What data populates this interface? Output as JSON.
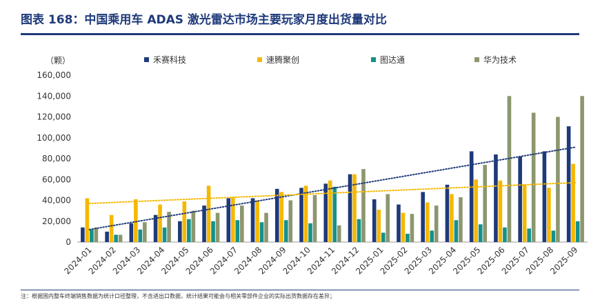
{
  "page": {
    "title": "图表 168：中国乘用车 ADAS 激光雷达市场主要玩家月度出货量对比",
    "note": "注：根据国内整车终端销售数据为统计口径整理，不含进出口数据，统计结果可能会与相关零部件企业的实际出货数据存在差异；"
  },
  "colors": {
    "title": "#1f3a7a",
    "hesai": "#1f3a7a",
    "robosense": "#f5b800",
    "seyond": "#14918a",
    "huawei": "#8c9770",
    "axis": "#999999",
    "text": "#333333"
  },
  "chart_data": {
    "type": "bar",
    "unit_label": "（颗）",
    "categories": [
      "2024-01",
      "2024-02",
      "2024-03",
      "2024-04",
      "2024-05",
      "2024-06",
      "2024-07",
      "2024-08",
      "2024-09",
      "2024-10",
      "2024-11",
      "2024-12",
      "2025-01",
      "2025-02",
      "2025-03",
      "2025-04",
      "2025-05",
      "2025-06",
      "2025-07",
      "2025-08",
      "2025-09"
    ],
    "ylim": [
      0,
      160000
    ],
    "yticks": [
      0,
      20000,
      40000,
      60000,
      80000,
      100000,
      120000,
      140000,
      160000
    ],
    "ytick_labels": [
      "0",
      "20,000",
      "40,000",
      "60,000",
      "80,000",
      "100,000",
      "120,000",
      "140,000",
      "160,000"
    ],
    "legend_position": "top",
    "series": [
      {
        "name": "禾赛科技",
        "color_key": "hesai",
        "values": [
          14000,
          10000,
          18000,
          26000,
          20000,
          35000,
          42000,
          42000,
          51000,
          52000,
          56000,
          65000,
          41000,
          36000,
          48000,
          55000,
          87000,
          84000,
          82000,
          87000,
          111000
        ]
      },
      {
        "name": "速腾聚创",
        "color_key": "robosense",
        "values": [
          42000,
          26000,
          41000,
          36000,
          39000,
          54000,
          43000,
          40000,
          48000,
          54000,
          59000,
          65000,
          31000,
          28000,
          38000,
          46000,
          60000,
          59000,
          55000,
          52000,
          75000
        ]
      },
      {
        "name": "图达通",
        "color_key": "seyond",
        "values": [
          12000,
          7000,
          12000,
          14000,
          22000,
          20000,
          21000,
          19000,
          21000,
          18000,
          53000,
          22000,
          9000,
          8000,
          11000,
          21000,
          17000,
          14000,
          13000,
          11000,
          20000
        ]
      },
      {
        "name": "华为技术",
        "color_key": "huawei",
        "values": [
          14000,
          7000,
          19000,
          29000,
          30000,
          28000,
          35000,
          28000,
          40000,
          45000,
          16000,
          70000,
          46000,
          27000,
          35000,
          43000,
          74000,
          140000,
          124000,
          120000,
          140000
        ]
      }
    ],
    "trendlines": [
      {
        "series": "禾赛科技",
        "style": "dotted",
        "color_key": "hesai",
        "start": 12000,
        "end": 91000
      },
      {
        "series": "速腾聚创",
        "style": "dotted",
        "color_key": "robosense",
        "start": 37000,
        "end": 57000
      }
    ]
  }
}
